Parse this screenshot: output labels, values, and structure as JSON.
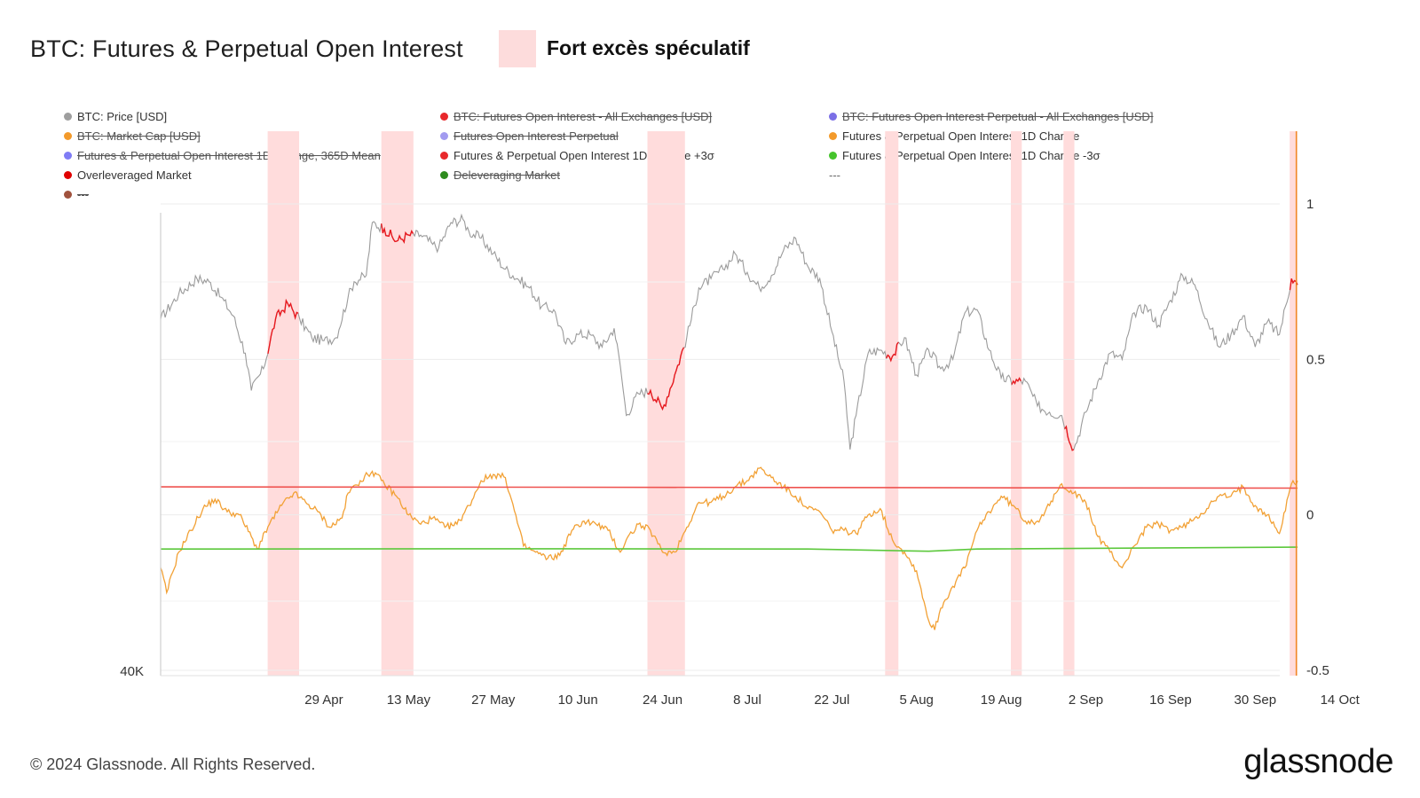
{
  "header": {
    "title": "BTC: Futures & Perpetual Open Interest",
    "annotation_label": "Fort excès spéculatif",
    "annotation_color": "#fddcdc"
  },
  "legend": [
    {
      "label": "BTC: Price [USD]",
      "color": "#9e9e9e",
      "state": "on"
    },
    {
      "label": "BTC: Futures Open Interest - All Exchanges [USD]",
      "color": "#e8282b",
      "state": "off"
    },
    {
      "label": "BTC: Futures Open Interest Perpetual - All Exchanges [USD]",
      "color": "#7b6fe6",
      "state": "off"
    },
    {
      "label": "BTC: Market Cap [USD]",
      "color": "#f39a2b",
      "state": "off"
    },
    {
      "label": "Futures Open Interest Perpetual",
      "color": "#a29bf0",
      "state": "off"
    },
    {
      "label": "Futures & Perpetual Open Interest 1D Change",
      "color": "#f39a2b",
      "state": "on"
    },
    {
      "label": "Futures & Perpetual Open Interest 1D Change, 365D Mean",
      "color": "#7f7cf5",
      "state": "off"
    },
    {
      "label": "Futures & Perpetual Open Interest 1D Change +3σ",
      "color": "#e8282b",
      "state": "on"
    },
    {
      "label": "Futures & Perpetual Open Interest 1D Change -3σ",
      "color": "#45c42c",
      "state": "on"
    },
    {
      "label": "Overleveraged Market",
      "color": "#e00000",
      "state": "on"
    },
    {
      "label": "Deleveraging Market",
      "color": "#2e8b1e",
      "state": "off"
    },
    {
      "label": "---",
      "color": "",
      "state": "plain"
    },
    {
      "label": "---",
      "color": "#a0523d",
      "state": "off"
    }
  ],
  "footer": {
    "copyright": "© 2024 Glassnode. All Rights Reserved.",
    "brand": "glassnode"
  },
  "chart_data": {
    "type": "line",
    "x_tick_labels": [
      "29 Apr",
      "13 May",
      "27 May",
      "10 Jun",
      "24 Jun",
      "8 Jul",
      "22 Jul",
      "5 Aug",
      "19 Aug",
      "2 Sep",
      "16 Sep",
      "30 Sep",
      "14 Oct"
    ],
    "left_axis": {
      "ticks": [
        "40K"
      ]
    },
    "right_axis": {
      "ticks": [
        "1",
        "0.5",
        "0",
        "-0.5"
      ],
      "values": [
        1,
        0.5,
        0,
        -0.5
      ],
      "range": [
        -0.5,
        1.0
      ]
    },
    "x_range_days": [
      -27,
      161
    ],
    "gridlines": true,
    "colors": {
      "price": "#9b9b9b",
      "price_overleveraged": "#e8181e",
      "oi_change": "#f2a135",
      "plus3sigma": "#ef5350",
      "minus3sigma": "#5cc83c",
      "shade": "#ffdcdc",
      "axis_text": "#333333",
      "grid": "#ececec"
    },
    "overleveraged_periods": [
      {
        "start_day": -9.3,
        "end_day": -4.1
      },
      {
        "start_day": 9.5,
        "end_day": 14.8
      },
      {
        "start_day": 53.5,
        "end_day": 59.7
      },
      {
        "start_day": 92.8,
        "end_day": 95.0
      },
      {
        "start_day": 113.6,
        "end_day": 115.4
      },
      {
        "start_day": 122.3,
        "end_day": 124.1
      },
      {
        "start_day": 159.7,
        "end_day": 161.0
      }
    ],
    "series": [
      {
        "name": "BTC: Price [USD]",
        "key": "price",
        "points": [
          [
            -27,
            0.63
          ],
          [
            -24,
            0.71
          ],
          [
            -21,
            0.76
          ],
          [
            -19,
            0.75
          ],
          [
            -17,
            0.7
          ],
          [
            -15,
            0.64
          ],
          [
            -13,
            0.52
          ],
          [
            -12,
            0.4
          ],
          [
            -10,
            0.47
          ],
          [
            -8,
            0.63
          ],
          [
            -6,
            0.68
          ],
          [
            -4,
            0.63
          ],
          [
            -2,
            0.57
          ],
          [
            0,
            0.56
          ],
          [
            2,
            0.57
          ],
          [
            4,
            0.7
          ],
          [
            5,
            0.75
          ],
          [
            7,
            0.77
          ],
          [
            8,
            0.94
          ],
          [
            10,
            0.92
          ],
          [
            12,
            0.88
          ],
          [
            14,
            0.9
          ],
          [
            16,
            0.9
          ],
          [
            18,
            0.87
          ],
          [
            19,
            0.86
          ],
          [
            21,
            0.94
          ],
          [
            23,
            0.95
          ],
          [
            24,
            0.91
          ],
          [
            26,
            0.89
          ],
          [
            28,
            0.84
          ],
          [
            30,
            0.79
          ],
          [
            32,
            0.76
          ],
          [
            34,
            0.73
          ],
          [
            36,
            0.67
          ],
          [
            38,
            0.66
          ],
          [
            40,
            0.55
          ],
          [
            42,
            0.58
          ],
          [
            44,
            0.58
          ],
          [
            46,
            0.54
          ],
          [
            48,
            0.6
          ],
          [
            49,
            0.48
          ],
          [
            50,
            0.32
          ],
          [
            52,
            0.39
          ],
          [
            54,
            0.4
          ],
          [
            56,
            0.34
          ],
          [
            58,
            0.45
          ],
          [
            60,
            0.57
          ],
          [
            62,
            0.73
          ],
          [
            64,
            0.76
          ],
          [
            66,
            0.79
          ],
          [
            68,
            0.84
          ],
          [
            70,
            0.78
          ],
          [
            72,
            0.73
          ],
          [
            74,
            0.77
          ],
          [
            76,
            0.85
          ],
          [
            78,
            0.89
          ],
          [
            80,
            0.8
          ],
          [
            82,
            0.76
          ],
          [
            84,
            0.59
          ],
          [
            86,
            0.43
          ],
          [
            87,
            0.21
          ],
          [
            88,
            0.32
          ],
          [
            90,
            0.52
          ],
          [
            92,
            0.53
          ],
          [
            94,
            0.51
          ],
          [
            96,
            0.57
          ],
          [
            98,
            0.45
          ],
          [
            100,
            0.53
          ],
          [
            102,
            0.47
          ],
          [
            104,
            0.5
          ],
          [
            106,
            0.65
          ],
          [
            108,
            0.66
          ],
          [
            110,
            0.53
          ],
          [
            112,
            0.44
          ],
          [
            114,
            0.43
          ],
          [
            116,
            0.43
          ],
          [
            118,
            0.35
          ],
          [
            120,
            0.33
          ],
          [
            122,
            0.32
          ],
          [
            124,
            0.21
          ],
          [
            126,
            0.33
          ],
          [
            128,
            0.43
          ],
          [
            130,
            0.52
          ],
          [
            132,
            0.5
          ],
          [
            134,
            0.65
          ],
          [
            136,
            0.67
          ],
          [
            138,
            0.61
          ],
          [
            140,
            0.69
          ],
          [
            142,
            0.77
          ],
          [
            144,
            0.74
          ],
          [
            146,
            0.63
          ],
          [
            148,
            0.54
          ],
          [
            150,
            0.58
          ],
          [
            152,
            0.64
          ],
          [
            154,
            0.54
          ],
          [
            156,
            0.62
          ],
          [
            158,
            0.58
          ],
          [
            160,
            0.76
          ],
          [
            161,
            0.74
          ]
        ]
      },
      {
        "name": "Futures & Perpetual Open Interest 1D Change",
        "key": "oi_change",
        "points": [
          [
            -27,
            -0.17
          ],
          [
            -26,
            -0.25
          ],
          [
            -24,
            -0.12
          ],
          [
            -22,
            -0.05
          ],
          [
            -20,
            0.02
          ],
          [
            -18,
            0.05
          ],
          [
            -16,
            0.01
          ],
          [
            -14,
            0.0
          ],
          [
            -12,
            -0.07
          ],
          [
            -11,
            -0.11
          ],
          [
            -9,
            -0.03
          ],
          [
            -7,
            0.03
          ],
          [
            -5,
            0.07
          ],
          [
            -3,
            0.04
          ],
          [
            -1,
            0.01
          ],
          [
            1,
            -0.04
          ],
          [
            3,
            -0.01
          ],
          [
            4,
            0.07
          ],
          [
            6,
            0.11
          ],
          [
            8,
            0.14
          ],
          [
            10,
            0.1
          ],
          [
            12,
            0.06
          ],
          [
            14,
            0.0
          ],
          [
            16,
            -0.03
          ],
          [
            18,
            -0.01
          ],
          [
            20,
            -0.04
          ],
          [
            22,
            -0.03
          ],
          [
            24,
            0.03
          ],
          [
            26,
            0.11
          ],
          [
            28,
            0.13
          ],
          [
            30,
            0.12
          ],
          [
            31,
            0.05
          ],
          [
            33,
            -0.1
          ],
          [
            35,
            -0.12
          ],
          [
            37,
            -0.14
          ],
          [
            39,
            -0.13
          ],
          [
            41,
            -0.05
          ],
          [
            43,
            -0.02
          ],
          [
            45,
            -0.03
          ],
          [
            47,
            -0.05
          ],
          [
            49,
            -0.12
          ],
          [
            50,
            -0.08
          ],
          [
            52,
            -0.03
          ],
          [
            54,
            -0.05
          ],
          [
            56,
            -0.12
          ],
          [
            58,
            -0.12
          ],
          [
            60,
            -0.04
          ],
          [
            62,
            0.04
          ],
          [
            64,
            0.04
          ],
          [
            66,
            0.06
          ],
          [
            68,
            0.09
          ],
          [
            70,
            0.11
          ],
          [
            72,
            0.15
          ],
          [
            74,
            0.12
          ],
          [
            76,
            0.09
          ],
          [
            78,
            0.06
          ],
          [
            80,
            0.02
          ],
          [
            82,
            0.01
          ],
          [
            84,
            -0.05
          ],
          [
            86,
            -0.05
          ],
          [
            88,
            -0.06
          ],
          [
            90,
            0.0
          ],
          [
            92,
            0.02
          ],
          [
            94,
            -0.08
          ],
          [
            96,
            -0.12
          ],
          [
            98,
            -0.18
          ],
          [
            100,
            -0.34
          ],
          [
            101,
            -0.37
          ],
          [
            102,
            -0.3
          ],
          [
            104,
            -0.23
          ],
          [
            106,
            -0.17
          ],
          [
            108,
            -0.05
          ],
          [
            110,
            0.01
          ],
          [
            112,
            0.06
          ],
          [
            114,
            0.03
          ],
          [
            116,
            -0.02
          ],
          [
            118,
            -0.02
          ],
          [
            120,
            0.03
          ],
          [
            122,
            0.1
          ],
          [
            124,
            0.07
          ],
          [
            126,
            0.04
          ],
          [
            128,
            -0.07
          ],
          [
            130,
            -0.12
          ],
          [
            132,
            -0.17
          ],
          [
            134,
            -0.1
          ],
          [
            136,
            -0.04
          ],
          [
            138,
            -0.03
          ],
          [
            140,
            -0.05
          ],
          [
            142,
            -0.04
          ],
          [
            144,
            -0.01
          ],
          [
            146,
            0.02
          ],
          [
            148,
            0.06
          ],
          [
            150,
            0.06
          ],
          [
            152,
            0.09
          ],
          [
            154,
            0.03
          ],
          [
            156,
            0.0
          ],
          [
            158,
            -0.06
          ],
          [
            160,
            0.1
          ],
          [
            161,
            0.11
          ]
        ]
      },
      {
        "name": "Futures & Perpetual Open Interest 1D Change +3σ",
        "key": "plus3sigma",
        "points": [
          [
            -27,
            0.09
          ],
          [
            40,
            0.089
          ],
          [
            80,
            0.088
          ],
          [
            120,
            0.087
          ],
          [
            161,
            0.086
          ]
        ]
      },
      {
        "name": "Futures & Perpetual Open Interest 1D Change -3σ",
        "key": "minus3sigma",
        "points": [
          [
            -27,
            -0.11
          ],
          [
            40,
            -0.109
          ],
          [
            80,
            -0.11
          ],
          [
            100,
            -0.117
          ],
          [
            108,
            -0.11
          ],
          [
            161,
            -0.104
          ]
        ]
      }
    ]
  }
}
